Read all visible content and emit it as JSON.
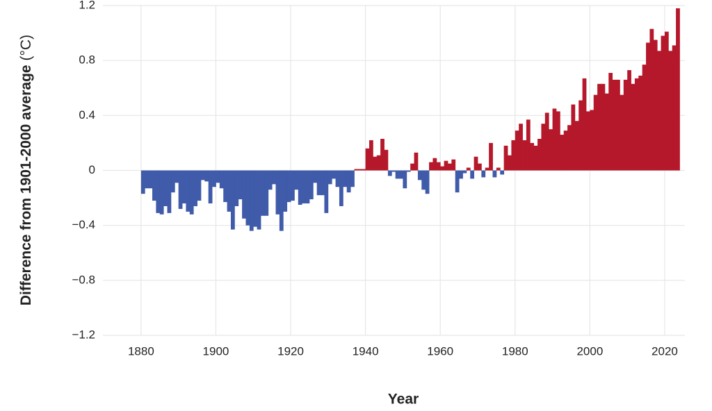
{
  "chart_data": {
    "type": "bar",
    "x_label": "Year",
    "y_label": "Difference from 1901-2000 average",
    "y_label_unit": "(°C)",
    "positive_color": "#b5182a",
    "negative_color": "#3f5ba9",
    "grid": true,
    "xlim": [
      1869.8,
      2025.4
    ],
    "ylim": [
      -1.2,
      1.2
    ],
    "xticks": [
      1880,
      1900,
      1920,
      1940,
      1960,
      1980,
      2000,
      2020
    ],
    "yticks": [
      {
        "value": -1.2,
        "label": "−1.2"
      },
      {
        "value": -0.8,
        "label": "−0.8"
      },
      {
        "value": -0.4,
        "label": "−0.4"
      },
      0,
      0.4,
      0.8,
      1.2
    ],
    "x": [
      1880,
      1881,
      1882,
      1883,
      1884,
      1885,
      1886,
      1887,
      1888,
      1889,
      1890,
      1891,
      1892,
      1893,
      1894,
      1895,
      1896,
      1897,
      1898,
      1899,
      1900,
      1901,
      1902,
      1903,
      1904,
      1905,
      1906,
      1907,
      1908,
      1909,
      1910,
      1911,
      1912,
      1913,
      1914,
      1915,
      1916,
      1917,
      1918,
      1919,
      1920,
      1921,
      1922,
      1923,
      1924,
      1925,
      1926,
      1927,
      1928,
      1929,
      1930,
      1931,
      1932,
      1933,
      1934,
      1935,
      1936,
      1937,
      1938,
      1939,
      1940,
      1941,
      1942,
      1943,
      1944,
      1945,
      1946,
      1947,
      1948,
      1949,
      1950,
      1951,
      1952,
      1953,
      1954,
      1955,
      1956,
      1957,
      1958,
      1959,
      1960,
      1961,
      1962,
      1963,
      1964,
      1965,
      1966,
      1967,
      1968,
      1969,
      1970,
      1971,
      1972,
      1973,
      1974,
      1975,
      1976,
      1977,
      1978,
      1979,
      1980,
      1981,
      1982,
      1983,
      1984,
      1985,
      1986,
      1987,
      1988,
      1989,
      1990,
      1991,
      1992,
      1993,
      1994,
      1995,
      1996,
      1997,
      1998,
      1999,
      2000,
      2001,
      2002,
      2003,
      2004,
      2005,
      2006,
      2007,
      2008,
      2009,
      2010,
      2011,
      2012,
      2013,
      2014,
      2015,
      2016,
      2017,
      2018,
      2019,
      2020,
      2021,
      2022,
      2023
    ],
    "values": [
      -0.17,
      -0.13,
      -0.13,
      -0.22,
      -0.31,
      -0.32,
      -0.26,
      -0.31,
      -0.16,
      -0.09,
      -0.28,
      -0.24,
      -0.3,
      -0.32,
      -0.26,
      -0.22,
      -0.07,
      -0.08,
      -0.24,
      -0.12,
      -0.09,
      -0.13,
      -0.23,
      -0.3,
      -0.43,
      -0.26,
      -0.21,
      -0.35,
      -0.4,
      -0.44,
      -0.41,
      -0.43,
      -0.33,
      -0.33,
      -0.14,
      -0.1,
      -0.32,
      -0.44,
      -0.3,
      -0.23,
      -0.22,
      -0.14,
      -0.25,
      -0.24,
      -0.24,
      -0.21,
      -0.09,
      -0.18,
      -0.18,
      -0.31,
      -0.1,
      -0.06,
      -0.12,
      -0.26,
      -0.12,
      -0.16,
      -0.12,
      0.01,
      0.01,
      0.01,
      0.16,
      0.22,
      0.1,
      0.11,
      0.23,
      0.15,
      -0.04,
      -0.01,
      -0.06,
      -0.06,
      -0.13,
      -0.01,
      0.05,
      0.13,
      -0.07,
      -0.14,
      -0.17,
      0.06,
      0.09,
      0.06,
      0.03,
      0.07,
      0.05,
      0.08,
      -0.16,
      -0.06,
      -0.02,
      0.02,
      -0.06,
      0.1,
      0.05,
      -0.05,
      0.02,
      0.2,
      -0.05,
      0.02,
      -0.03,
      0.18,
      0.11,
      0.22,
      0.29,
      0.34,
      0.22,
      0.37,
      0.2,
      0.18,
      0.23,
      0.34,
      0.42,
      0.3,
      0.45,
      0.43,
      0.26,
      0.29,
      0.33,
      0.48,
      0.36,
      0.51,
      0.67,
      0.43,
      0.44,
      0.55,
      0.63,
      0.63,
      0.56,
      0.71,
      0.66,
      0.66,
      0.55,
      0.66,
      0.73,
      0.63,
      0.67,
      0.69,
      0.77,
      0.93,
      1.03,
      0.95,
      0.87,
      0.98,
      1.01,
      0.87,
      0.91,
      1.18
    ]
  }
}
